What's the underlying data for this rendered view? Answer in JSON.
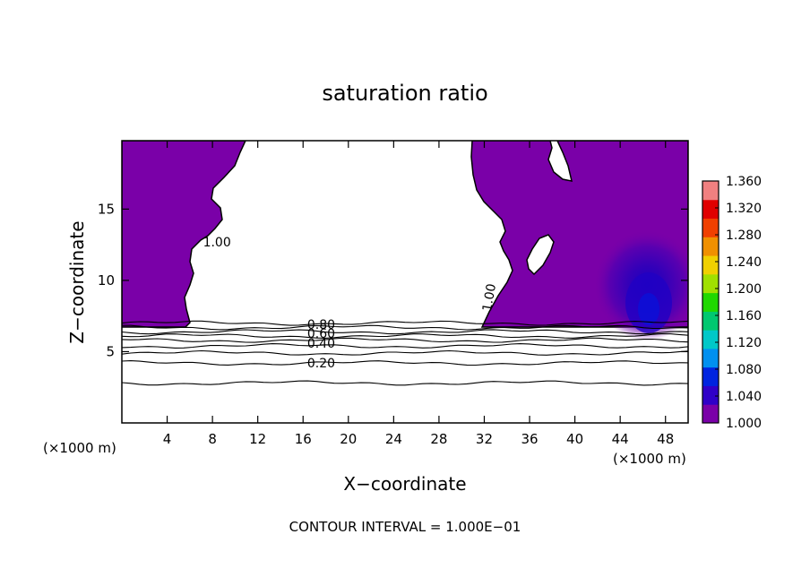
{
  "chart_data": {
    "type": "heatmap",
    "title": "saturation ratio",
    "xlabel": "X−coordinate",
    "ylabel": "Z−coordinate",
    "x_unit_left": "(×1000 m)",
    "x_unit_right": "(×1000 m)",
    "footer": "CONTOUR INTERVAL = 1.000E−01",
    "xlim": [
      0,
      50
    ],
    "ylim": [
      0,
      19.8
    ],
    "x_ticks": [
      4,
      8,
      12,
      16,
      20,
      24,
      28,
      32,
      36,
      40,
      44,
      48
    ],
    "y_ticks": [
      5,
      10,
      15
    ],
    "colorbar": {
      "min": 1.0,
      "max": 1.36,
      "ticks": [
        "1.000",
        "1.040",
        "1.080",
        "1.120",
        "1.160",
        "1.200",
        "1.240",
        "1.280",
        "1.320",
        "1.360"
      ],
      "colors": [
        "#7a00a8",
        "#3000c8",
        "#0024e0",
        "#0090f0",
        "#00c8c8",
        "#00c870",
        "#20d800",
        "#a0e000",
        "#f0d000",
        "#f09000",
        "#f04000",
        "#e00000",
        "#f08080"
      ]
    },
    "contour_labels": [
      {
        "text": "1.00",
        "x": 8.4,
        "z": 12.7
      },
      {
        "text": "1.00",
        "x": 32.4,
        "z": 8.8
      },
      {
        "text": "0.80",
        "x": 17.6,
        "z": 6.9
      },
      {
        "text": "0.60",
        "x": 17.6,
        "z": 6.3
      },
      {
        "text": "0.40",
        "x": 17.6,
        "z": 5.6
      },
      {
        "text": "0.20",
        "x": 17.6,
        "z": 4.2
      }
    ],
    "contour_levels": [
      {
        "level": 0.9,
        "z": 7.0
      },
      {
        "level": 0.8,
        "z": 6.7
      },
      {
        "level": 0.7,
        "z": 6.4
      },
      {
        "level": 0.6,
        "z": 6.1
      },
      {
        "level": 0.5,
        "z": 5.8
      },
      {
        "level": 0.4,
        "z": 5.4
      },
      {
        "level": 0.3,
        "z": 4.9
      },
      {
        "level": 0.2,
        "z": 4.2
      },
      {
        "level": 0.1,
        "z": 2.8
      }
    ]
  }
}
